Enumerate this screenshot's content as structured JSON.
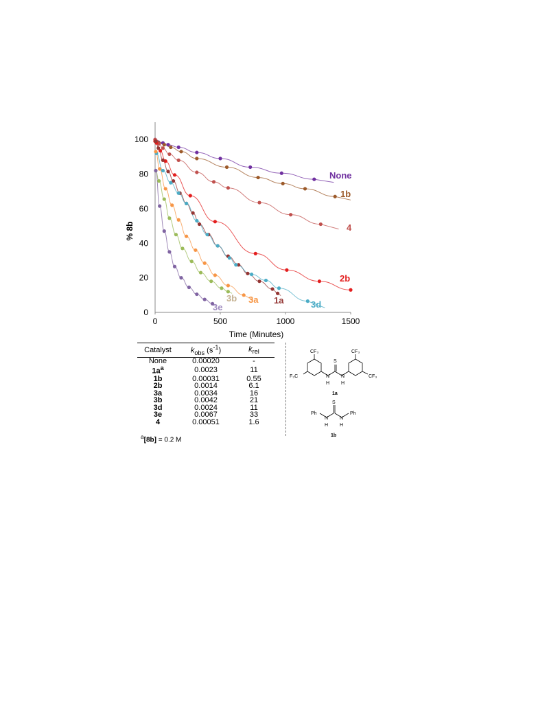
{
  "chart_data": {
    "type": "scatter",
    "xlabel": "Time  (Minutes)",
    "ylabel": "% 8b",
    "xlim": [
      0,
      1500
    ],
    "ylim": [
      0,
      110
    ],
    "xticks": [
      0,
      500,
      1000,
      1500
    ],
    "yticks": [
      0,
      20,
      40,
      60,
      80,
      100
    ],
    "grid": false,
    "series": [
      {
        "name": "None",
        "color": "#7030a0",
        "x": [
          0,
          10,
          25,
          60,
          100,
          180,
          320,
          500,
          730,
          970,
          1220
        ],
        "y": [
          100,
          99,
          98.5,
          98,
          97,
          95.5,
          92.5,
          89,
          84,
          80.5,
          77
        ]
      },
      {
        "name": "1b",
        "color": "#9c5a2a",
        "x": [
          0,
          10,
          30,
          70,
          120,
          200,
          320,
          550,
          790,
          980,
          1150,
          1380
        ],
        "y": [
          99,
          98.5,
          98,
          97,
          95.5,
          93,
          89,
          84,
          78,
          74.5,
          71.5,
          67
        ]
      },
      {
        "name": "4",
        "color": "#c0504d",
        "x": [
          0,
          10,
          30,
          60,
          110,
          180,
          320,
          450,
          560,
          800,
          1040,
          1270
        ],
        "y": [
          100,
          99,
          97.5,
          95,
          91.5,
          88,
          81,
          75.5,
          72,
          63.5,
          56.5,
          51
        ]
      },
      {
        "name": "2b",
        "color": "#e31e1e",
        "x": [
          0,
          10,
          40,
          80,
          150,
          270,
          460,
          770,
          1010,
          1260,
          1500
        ],
        "y": [
          99,
          98,
          93.5,
          87.5,
          79.5,
          67.5,
          52.5,
          34,
          24.5,
          18,
          13
        ]
      },
      {
        "name": "1a",
        "color": "#943634",
        "x": [
          5,
          25,
          60,
          100,
          140,
          190,
          240,
          290,
          340,
          410,
          480,
          560,
          640,
          710,
          800,
          900,
          940
        ],
        "y": [
          99,
          95,
          88,
          81.5,
          76,
          69,
          63,
          57.5,
          51,
          45,
          38.5,
          32.5,
          27.5,
          22.5,
          18,
          13.5,
          11
        ]
      },
      {
        "name": "3d",
        "color": "#4bacc6",
        "x": [
          10,
          60,
          120,
          180,
          240,
          320,
          400,
          480,
          570,
          620,
          740,
          850,
          950,
          1170
        ],
        "y": [
          92,
          82,
          75,
          69,
          63,
          53,
          45,
          38.5,
          31.5,
          27.5,
          22,
          18.5,
          14,
          6.5
        ]
      },
      {
        "name": "3a",
        "color": "#f79646",
        "x": [
          5,
          35,
          80,
          130,
          180,
          240,
          310,
          380,
          460,
          560,
          680
        ],
        "y": [
          93,
          83,
          71.5,
          62,
          53.5,
          44,
          36,
          28.5,
          21.5,
          15.5,
          10
        ]
      },
      {
        "name": "3b",
        "color": "#9bbb59",
        "x": [
          5,
          30,
          70,
          110,
          160,
          210,
          280,
          350,
          430,
          510,
          560
        ],
        "y": [
          82,
          76,
          65.5,
          54.5,
          45,
          37,
          29.5,
          23,
          18,
          14,
          12
        ]
      },
      {
        "name": "3e",
        "color": "#8064a2",
        "x": [
          5,
          35,
          70,
          110,
          150,
          200,
          260,
          320,
          380,
          440
        ],
        "y": [
          82,
          61.5,
          47,
          35,
          26.5,
          20,
          14.5,
          10.5,
          7.5,
          5
        ]
      }
    ],
    "series_labels": {
      "None": "None",
      "1b": "1b",
      "4": "4",
      "2b": "2b",
      "1a": "1a",
      "3d": "3d",
      "3a": "3a",
      "3b": "3b",
      "3e": "3e"
    }
  },
  "table": {
    "headers": {
      "catalyst": "Catalyst",
      "kobs_k": "k",
      "kobs_sub": "obs",
      "kobs_unit": " (s",
      "kobs_exp": "-1",
      "kobs_close": ")",
      "krel_k": "k",
      "krel_sub": "rel"
    },
    "rows": [
      {
        "catalyst": "None",
        "sup": "",
        "kobs": "0.00020",
        "krel": "-",
        "bold": false
      },
      {
        "catalyst": "1a",
        "sup": "a",
        "kobs": "0.0023",
        "krel": "11",
        "bold": true
      },
      {
        "catalyst": "1b",
        "sup": "",
        "kobs": "0.00031",
        "krel": "0.55",
        "bold": true
      },
      {
        "catalyst": "2b",
        "sup": "",
        "kobs": "0.0014",
        "krel": "6.1",
        "bold": true
      },
      {
        "catalyst": "3a",
        "sup": "",
        "kobs": "0.0034",
        "krel": "16",
        "bold": true
      },
      {
        "catalyst": "3b",
        "sup": "",
        "kobs": "0.0042",
        "krel": "21",
        "bold": true
      },
      {
        "catalyst": "3d",
        "sup": "",
        "kobs": "0.0024",
        "krel": "11",
        "bold": true
      },
      {
        "catalyst": "3e",
        "sup": "",
        "kobs": "0.0067",
        "krel": "33",
        "bold": true
      },
      {
        "catalyst": "4",
        "sup": "",
        "kobs": "0.00051",
        "krel": "1.6",
        "bold": true
      }
    ],
    "footnote_sup": "a",
    "footnote_bold": "[8b]",
    "footnote_rest": " = 0.2 M"
  },
  "structures": {
    "s1a": {
      "cf3_top": "CF₃",
      "f3c_left": "F₃C",
      "cf3_right": "CF₃",
      "s": "S",
      "n": "N",
      "h": "H",
      "label": "1a"
    },
    "s1b": {
      "ph": "Ph",
      "s": "S",
      "n": "N",
      "h": "H",
      "label": "1b"
    }
  }
}
